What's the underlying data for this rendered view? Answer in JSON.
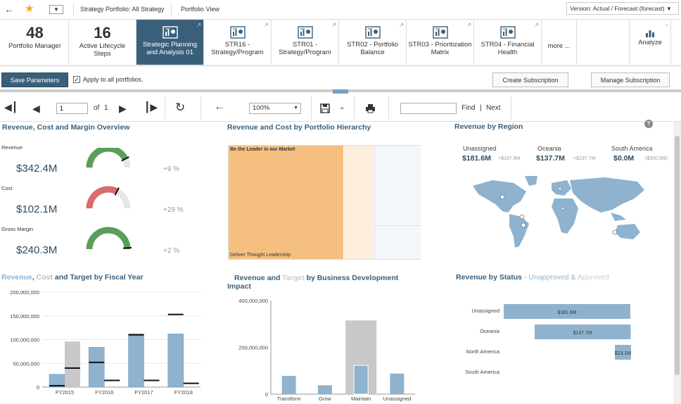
{
  "topbar": {
    "back_icon": "arrow-left-icon",
    "star_icon": "star-icon",
    "breadcrumb_portfolio": "Strategy Portfolio: All Strategy",
    "portfolio_view": "Portfolio View",
    "version_label": "Version: Actual / Forecast (forecast)",
    "star_color": "#f5a623"
  },
  "tiles": [
    {
      "num": "48",
      "label": "Portfolio Manager"
    },
    {
      "num": "16",
      "label": "Active Lifecycle Steps"
    },
    {
      "label": "Strategic Planning and Analysis 01"
    },
    {
      "label": "STR16 - Strategy/Program"
    },
    {
      "label": "STR01 - Strategy/Program"
    },
    {
      "label": "STR02 - Portfolio Balance"
    },
    {
      "label": "STR03 - Prioritization Matrix"
    },
    {
      "label": "STR04 - Financial Health"
    },
    {
      "label": "more ..."
    },
    {
      "label": "Analyze"
    }
  ],
  "params": {
    "save_label": "Save Parameters",
    "apply_all_label": "Apply to all portfolios.",
    "apply_all_checked": true,
    "create_sub_label": "Create Subscription",
    "manage_sub_label": "Manage Subscription"
  },
  "toolbar": {
    "page_value": "1",
    "of_label": "of",
    "total_pages": "1",
    "zoom_value": "100%",
    "find_label": "Find",
    "sep": "|",
    "next_label": "Next"
  },
  "overview": {
    "title": "Revenue, Cost and Margin Overview",
    "items": [
      {
        "label": "Revenue",
        "value": "$342.4M",
        "pct": "+9 %",
        "fill": 0.85,
        "color": "#5a9e5a"
      },
      {
        "label": "Cost",
        "value": "$102.1M",
        "pct": "+29 %",
        "fill": 0.65,
        "color": "#d96b6b"
      },
      {
        "label": "Gross Margin",
        "value": "$240.3M",
        "pct": "+2 %",
        "fill": 1.0,
        "color": "#5a9e5a"
      }
    ]
  },
  "hierarchy": {
    "title": "Revenue and Cost by Portfolio Hierarchy",
    "top_label": "Be the Leader in our Market",
    "bottom_label": "Deliver Thought Leadership"
  },
  "region": {
    "title": "Revenue by Region",
    "items": [
      {
        "name": "Unassigned",
        "value": "$181.6M",
        "sub": "+$167.8M"
      },
      {
        "name": "Oceania",
        "value": "$137.7M",
        "sub": "+$137.7M"
      },
      {
        "name": "South America",
        "value": "$0.0M",
        "sub": "($300.0M)"
      }
    ],
    "map_color": "#8fb3cf"
  },
  "chart_data": [
    {
      "type": "bar",
      "title_parts": [
        "Revenue",
        ", ",
        "Cost",
        " and Target by Fiscal Year"
      ],
      "categories": [
        "FY2015",
        "FY2016",
        "FY2017",
        "FY2018"
      ],
      "ylim": [
        0,
        200000000
      ],
      "yticks": [
        "0",
        "50,000,000",
        "100,000,000",
        "150,000,000",
        "200,000,000"
      ],
      "series": [
        {
          "name": "Revenue",
          "values": [
            27000000,
            84000000,
            112000000,
            112000000
          ],
          "color": "#8fb3cf"
        },
        {
          "name": "Cost",
          "values": [
            96000000,
            0,
            0,
            0
          ],
          "color": "#c8c8c8"
        }
      ],
      "target_revenue": [
        3000000,
        52000000,
        110000000,
        153000000
      ],
      "target_cost": [
        40000000,
        14000000,
        14000000,
        8000000
      ]
    },
    {
      "type": "bar",
      "title_parts": [
        "Revenue",
        " and ",
        "Target",
        " by Business Development",
        "Impact"
      ],
      "categories": [
        "Transform",
        "Grow",
        "Maintain",
        "Unassigned"
      ],
      "ylim": [
        0,
        400000000
      ],
      "yticks": [
        "0",
        "200,000,000",
        "400,000,000"
      ],
      "series": [
        {
          "name": "Target",
          "values": [
            0,
            0,
            315000000,
            0
          ],
          "color": "#c8c8c8"
        },
        {
          "name": "Revenue",
          "values": [
            78000000,
            38000000,
            123000000,
            88000000
          ],
          "color": "#8fb3cf"
        }
      ]
    },
    {
      "type": "bar",
      "orientation": "horizontal",
      "title_parts": [
        "Revenue by Status",
        " - ",
        "Unapproved",
        " & ",
        "Approved"
      ],
      "categories": [
        "Unassigned",
        "Oceania",
        "North America",
        "South America"
      ],
      "values": [
        181.6,
        137.7,
        23.1,
        0
      ],
      "value_labels": [
        "$181.6M",
        "$137.7M",
        "$23.1M",
        ""
      ],
      "offsets": [
        0,
        44,
        158,
        0
      ],
      "color": "#8fb3cf"
    }
  ]
}
